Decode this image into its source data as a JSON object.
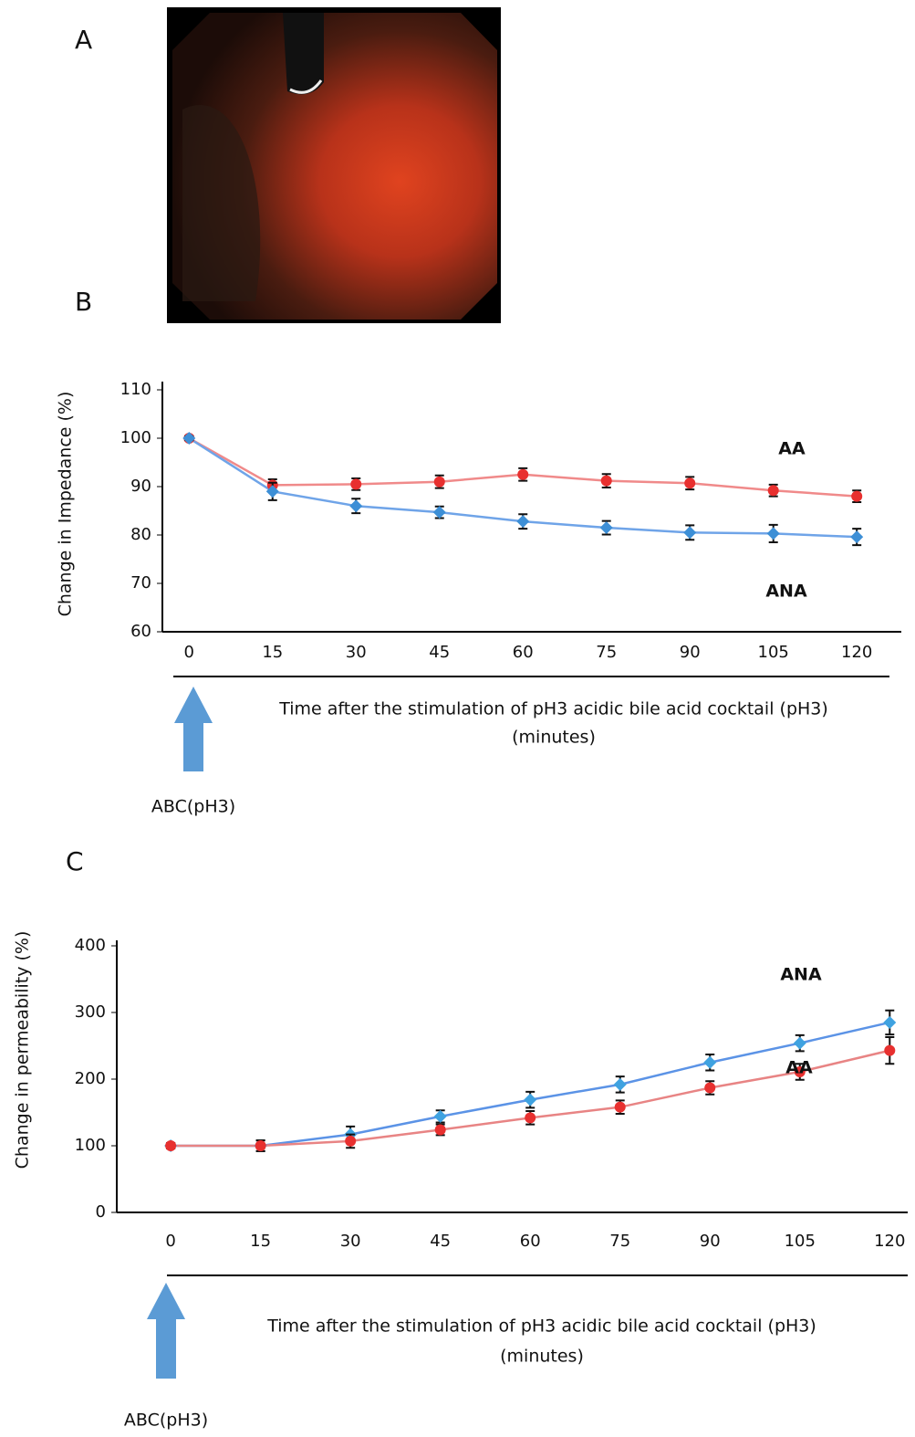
{
  "panel_a": {
    "label": "A"
  },
  "chart_data": [
    {
      "type": "line",
      "panel": "B",
      "ylabel": "Change in Impedance (%)",
      "xlabel": [
        "Time after the stimulation of pH3 acidic bile acid cocktail (pH3)",
        "(minutes)"
      ],
      "annotation": "ABC(pH3)",
      "x": [
        0,
        15,
        30,
        45,
        60,
        75,
        90,
        105,
        120
      ],
      "xlim": [
        -4.8,
        128
      ],
      "xticks": [
        0,
        15,
        30,
        45,
        60,
        75,
        90,
        105,
        120
      ],
      "ylim": [
        60,
        110
      ],
      "yticks": [
        60,
        70,
        80,
        90,
        100,
        110
      ],
      "series": [
        {
          "name": "AA",
          "color": "#e8302f",
          "line_color": "#f08a8a",
          "marker": "circle",
          "values": [
            100,
            90.3,
            90.5,
            91,
            92.5,
            91.2,
            90.7,
            89.2,
            88
          ],
          "errors": [
            0.4,
            1.2,
            1.2,
            1.3,
            1.3,
            1.4,
            1.3,
            1.2,
            1.2
          ]
        },
        {
          "name": "ANA",
          "color": "#3d8fd6",
          "line_color": "#6fa4e8",
          "marker": "diamond",
          "values": [
            100,
            89,
            86,
            84.7,
            82.8,
            81.5,
            80.5,
            80.3,
            79.6
          ],
          "errors": [
            0.4,
            1.8,
            1.5,
            1.2,
            1.5,
            1.4,
            1.5,
            1.8,
            1.7
          ]
        }
      ]
    },
    {
      "type": "line",
      "panel": "C",
      "ylabel": "Change in permeability (%)",
      "xlabel": [
        "Time after the stimulation of pH3 acidic bile acid cocktail (pH3)",
        "(minutes)"
      ],
      "annotation": "ABC(pH3)",
      "x": [
        0,
        15,
        30,
        45,
        60,
        75,
        90,
        105,
        120
      ],
      "xlim": [
        -9,
        123
      ],
      "xticks": [
        0,
        15,
        30,
        45,
        60,
        75,
        90,
        105,
        120
      ],
      "ylim": [
        0,
        400
      ],
      "yticks": [
        0,
        100,
        200,
        300,
        400
      ],
      "series": [
        {
          "name": "ANA",
          "color": "#3fa2e0",
          "line_color": "#5b93e6",
          "marker": "diamond",
          "values": [
            100,
            100,
            117,
            144,
            169,
            192,
            225,
            254,
            285
          ],
          "errors": [
            4,
            8,
            12,
            9,
            12,
            12,
            12,
            12,
            18
          ]
        },
        {
          "name": "AA",
          "color": "#e8302f",
          "line_color": "#e88484",
          "marker": "circle",
          "values": [
            100,
            100,
            107,
            124,
            142,
            158,
            187,
            211,
            243
          ],
          "errors": [
            4,
            8,
            10,
            8,
            10,
            10,
            10,
            12,
            20
          ]
        }
      ]
    }
  ]
}
